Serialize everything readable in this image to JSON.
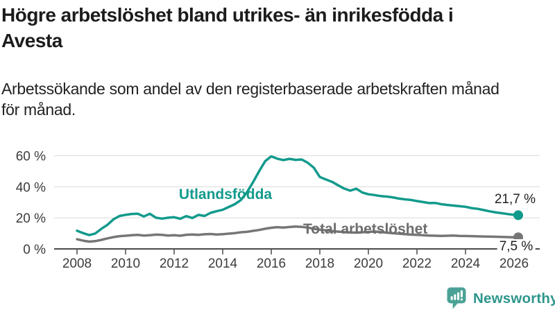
{
  "header": {
    "title_line1": "Högre arbetslöshet bland utrikes- än inrikesfödda i",
    "title_line2": "Avesta",
    "subtitle_line1": "Arbetssökande som andel av den registerbaserade arbetskraften månad",
    "subtitle_line2": "för månad."
  },
  "chart_data": {
    "type": "line",
    "title": "Högre arbetslöshet bland utrikes- än inrikesfödda i Avesta",
    "subtitle": "Arbetssökande som andel av den registerbaserade arbetskraften månad för månad.",
    "x_start": 2008,
    "x_step_years": 0.25,
    "x_last": 2026.17,
    "x_ticks": [
      2008,
      2010,
      2012,
      2014,
      2016,
      2018,
      2020,
      2022,
      2024,
      2026
    ],
    "y_ticks": [
      0,
      20,
      40,
      60
    ],
    "y_tick_suffix": " %",
    "ylim": [
      0,
      63
    ],
    "grid": true,
    "grid_color": "#d9d9d9",
    "axis_color": "#4a4a4a",
    "series": [
      {
        "name": "Utlandsfödda",
        "color": "#129a8c",
        "end_label": "21,7 %",
        "end_value": 21.7,
        "values": [
          11.7,
          10.2,
          8.9,
          9.9,
          12.9,
          15.5,
          19.0,
          21.2,
          21.9,
          22.5,
          22.7,
          20.9,
          22.6,
          20.1,
          19.5,
          20.1,
          20.4,
          19.4,
          21.1,
          19.9,
          21.9,
          21.2,
          23.2,
          24.3,
          25.2,
          27.0,
          28.8,
          31.5,
          36.5,
          43.0,
          50.0,
          56.5,
          59.6,
          58.1,
          57.2,
          58.0,
          57.3,
          57.6,
          55.5,
          52.3,
          46.3,
          44.7,
          43.2,
          41.0,
          38.9,
          37.5,
          38.8,
          36.3,
          35.2,
          34.7,
          34.0,
          33.7,
          33.2,
          32.4,
          31.9,
          31.5,
          30.8,
          30.2,
          29.5,
          29.6,
          28.8,
          28.3,
          27.9,
          27.5,
          27.1,
          26.3,
          25.8,
          25.0,
          24.2,
          23.5,
          23.0,
          22.4,
          21.9,
          21.7
        ]
      },
      {
        "name": "Total arbetslöshet",
        "color": "#767676",
        "end_label": "7,5 %",
        "end_value": 7.5,
        "values": [
          6.2,
          5.3,
          4.7,
          5.0,
          5.8,
          6.8,
          7.6,
          8.2,
          8.5,
          8.8,
          9.0,
          8.6,
          8.8,
          9.2,
          9.0,
          8.6,
          8.8,
          8.5,
          9.1,
          9.3,
          9.0,
          9.4,
          9.6,
          9.3,
          9.5,
          9.8,
          10.2,
          10.7,
          11.0,
          11.6,
          12.2,
          13.0,
          13.6,
          14.0,
          13.7,
          14.1,
          14.4,
          14.2,
          13.7,
          13.0,
          12.4,
          11.9,
          11.5,
          11.1,
          10.8,
          10.6,
          10.5,
          10.7,
          10.9,
          11.2,
          10.9,
          10.5,
          10.1,
          9.8,
          9.5,
          9.2,
          9.0,
          8.8,
          8.6,
          8.5,
          8.4,
          8.5,
          8.6,
          8.4,
          8.3,
          8.2,
          8.1,
          8.0,
          7.9,
          7.8,
          7.7,
          7.6,
          7.5,
          7.5
        ]
      }
    ]
  },
  "footer": {
    "brand": "Newsworthy",
    "icon_color": "#4aa296",
    "text_color": "#2d968c"
  }
}
